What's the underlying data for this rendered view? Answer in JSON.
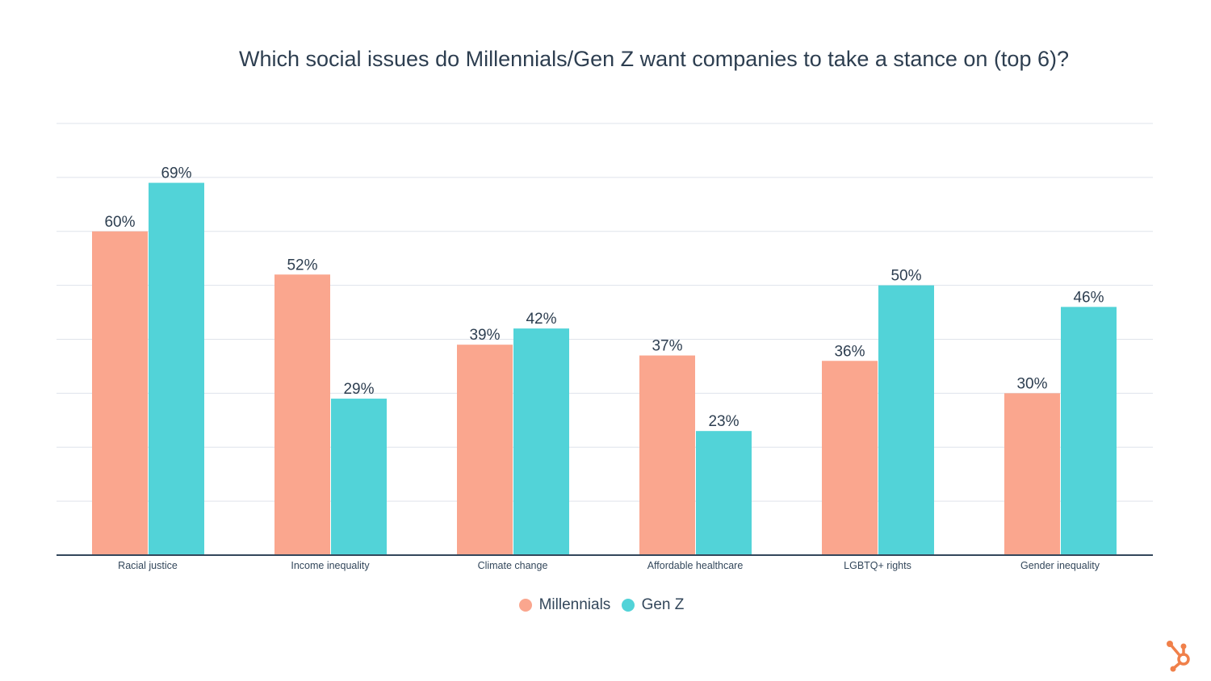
{
  "chart_data": {
    "type": "bar",
    "title": "Which social issues do Millennials/Gen Z want companies to take a stance on (top 6)?",
    "categories": [
      "Racial justice",
      "Income inequality",
      "Climate change",
      "Affordable healthcare",
      "LGBTQ+ rights",
      "Gender inequality"
    ],
    "series": [
      {
        "name": "Millennials",
        "values": [
          60,
          52,
          39,
          37,
          36,
          30
        ],
        "labels": [
          "60%",
          "52%",
          "39%",
          "37%",
          "36%",
          "30%"
        ],
        "color": "#FAA68E"
      },
      {
        "name": "Gen Z",
        "values": [
          69,
          29,
          42,
          23,
          50,
          46
        ],
        "labels": [
          "69%",
          "29%",
          "42%",
          "23%",
          "50%",
          "46%"
        ],
        "color": "#52D3D8"
      }
    ],
    "ylim": [
      0,
      80
    ],
    "grid": true,
    "legend": "bottom",
    "xlabel": "",
    "ylabel": ""
  },
  "colors": {
    "axis": "#33475b",
    "grid": "#dfe3eb",
    "logo": "#F0804A"
  },
  "logo_text": "HubSpot"
}
